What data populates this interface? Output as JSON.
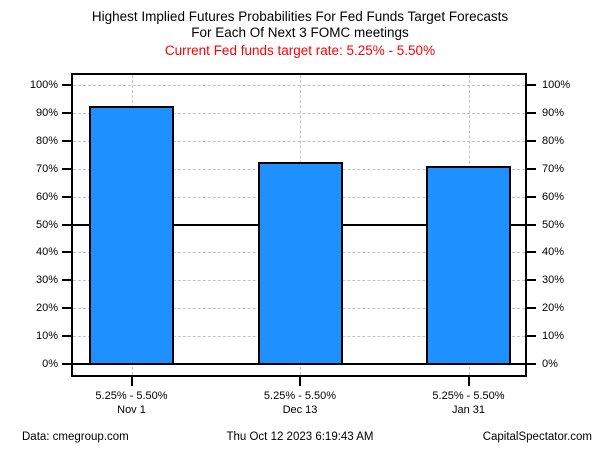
{
  "title": {
    "line1": "Highest Implied Futures Probabilities For Fed Funds Target Forecasts",
    "line2": "For Each Of Next 3 FOMC meetings",
    "subtitle": "Current Fed funds target rate: 5.25% - 5.50%",
    "subtitle_color": "#ff0000"
  },
  "chart_data": {
    "type": "bar",
    "categories": [
      {
        "rate": "5.25% - 5.50%",
        "date": "Nov 1"
      },
      {
        "rate": "5.25% - 5.50%",
        "date": "Dec 13"
      },
      {
        "rate": "5.25% - 5.50%",
        "date": "Jan 31"
      }
    ],
    "values": [
      92,
      72,
      70.5
    ],
    "title": "Highest Implied Futures Probabilities For Fed Funds Target Forecasts For Each Of Next 3 FOMC meetings",
    "xlabel": "",
    "ylabel": "",
    "ylim": [
      0,
      100
    ],
    "ytick_step": 10,
    "ytick_labels": [
      "0%",
      "10%",
      "20%",
      "30%",
      "40%",
      "50%",
      "60%",
      "70%",
      "80%",
      "90%",
      "100%"
    ],
    "yaxis_sides": "both",
    "reference_lines": [
      0,
      50
    ],
    "grid": true,
    "gridline_style": "dashed",
    "gridline_color": "#c3c3c3",
    "bar_color": "#1e90ff",
    "bar_border_color": "#000000",
    "legend": "none"
  },
  "footer": {
    "left": "Data: cmegroup.com",
    "center": "Thu Oct 12 2023 6:19:43 AM",
    "right": "CapitalSpectator.com"
  }
}
